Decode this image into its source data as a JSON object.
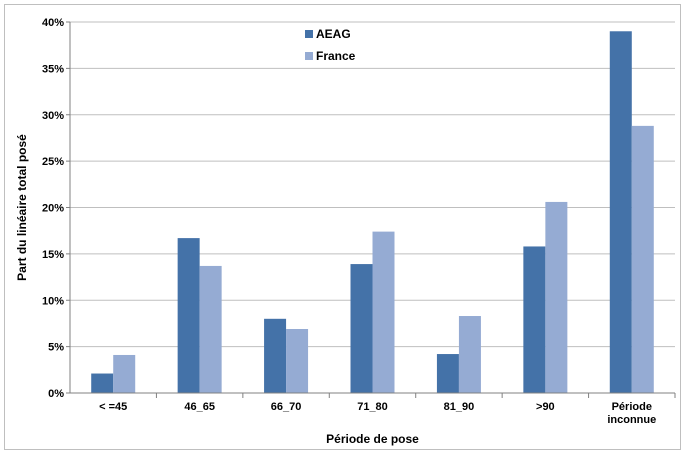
{
  "chart_data": {
    "type": "bar",
    "categories": [
      "< =45",
      "46_65",
      "66_70",
      "71_80",
      "81_90",
      ">90",
      "Période\ninconnue"
    ],
    "series": [
      {
        "name": "AEAG",
        "color": "#4472a8",
        "values": [
          2.1,
          16.7,
          8.0,
          13.9,
          4.2,
          15.8,
          39.0
        ]
      },
      {
        "name": "France",
        "color": "#95abd3",
        "values": [
          4.1,
          13.7,
          6.9,
          17.4,
          8.3,
          20.6,
          28.8
        ]
      }
    ],
    "title": "",
    "xlabel": "Période de pose",
    "ylabel": "Part du linéaire total posé",
    "ylim": [
      0,
      40
    ],
    "yticks": [
      "0%",
      "5%",
      "10%",
      "15%",
      "20%",
      "25%",
      "30%",
      "35%",
      "40%"
    ],
    "grid": true,
    "legend_position": "top-center"
  }
}
